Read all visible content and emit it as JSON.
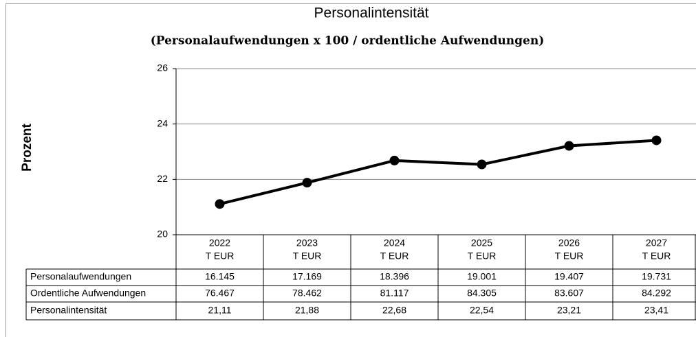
{
  "chart_data": {
    "type": "line",
    "title": "Personalintensität",
    "subtitle": "(Personalaufwendungen x 100 / ordentliche Aufwendungen)",
    "y_label": "Prozent",
    "categories": [
      "2022",
      "2023",
      "2024",
      "2025",
      "2026",
      "2027"
    ],
    "category_unit": "T EUR",
    "series": [
      {
        "name": "Personalintensität",
        "color": "#000000",
        "values": [
          21.11,
          21.88,
          22.68,
          22.54,
          23.21,
          23.41
        ],
        "value_labels": [
          "21,11",
          "21,88",
          "22,68",
          "22,54",
          "23,21",
          "23,41"
        ]
      }
    ],
    "ylim": [
      20,
      26
    ],
    "yticks": [
      20,
      22,
      24,
      26
    ],
    "grid": true,
    "table": {
      "rows": [
        {
          "name": "Personalaufwendungen",
          "values": [
            "16.145",
            "17.169",
            "18.396",
            "19.001",
            "19.407",
            "19.731"
          ]
        },
        {
          "name": "Ordentliche Aufwendungen",
          "values": [
            "76.467",
            "78.462",
            "81.117",
            "84.305",
            "83.607",
            "84.292"
          ]
        }
      ]
    }
  }
}
